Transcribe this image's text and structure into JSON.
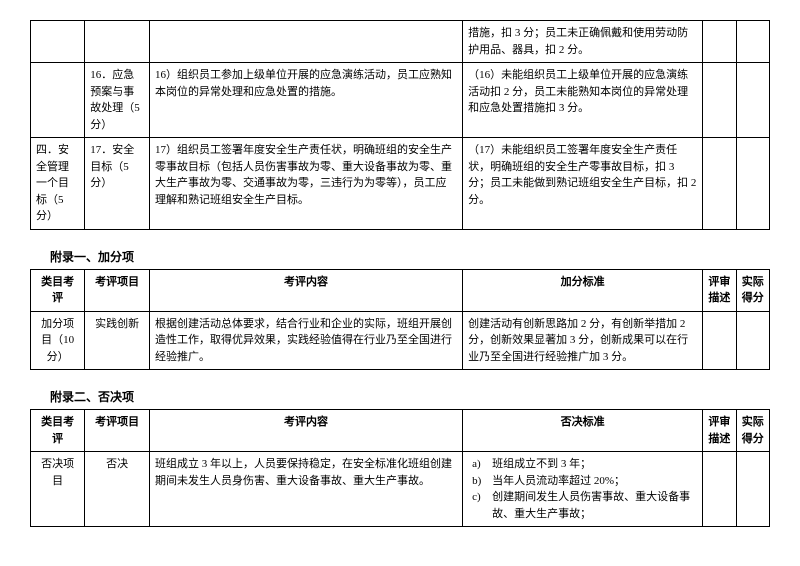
{
  "table1": {
    "rows": [
      {
        "cat": "",
        "item": "",
        "content": "",
        "standard": "措施，扣 3 分；员工未正确佩戴和使用劳动防护用品、器具，扣 2 分。"
      },
      {
        "cat": "",
        "item": "16．应急预案与事故处理（5 分）",
        "content": "16）组织员工参加上级单位开展的应急演练活动，员工应熟知本岗位的异常处理和应急处置的措施。",
        "standard": "（16）未能组织员工上级单位开展的应急演练活动扣 2 分，员工未能熟知本岗位的异常处理和应急处置措施扣 3 分。"
      },
      {
        "cat": "四．安全管理一个目标（5 分）",
        "item": "17．安全目标（5 分）",
        "content": "17）组织员工签署年度安全生产责任状，明确班组的安全生产零事故目标（包括人员伤害事故为零、重大设备事故为零、重大生产事故为零、交通事故为零，三违行为为零等），员工应理解和熟记班组安全生产目标。",
        "standard": "（17）未能组织员工签署年度安全生产责任状，明确班组的安全生产零事故目标，扣 3 分；员工未能做到熟记班组安全生产目标，扣 2 分。"
      }
    ]
  },
  "appendix1": {
    "title": "附录一、加分项",
    "headers": {
      "a": "类目考评",
      "b": "考评项目",
      "c": "考评内容",
      "d": "加分标准",
      "e": "评审描述",
      "f": "实际得分"
    },
    "row": {
      "cat": "加分项目（10分）",
      "item": "实践创新",
      "content": "根据创建活动总体要求，结合行业和企业的实际，班组开展创造性工作，取得优异效果，实践经验值得在行业乃至全国进行经验推广。",
      "standard": "创建活动有创新思路加 2 分，有创新举措加 2 分，创新效果显著加 3 分，创新成果可以在行业乃至全国进行经验推广加 3 分。"
    }
  },
  "appendix2": {
    "title": "附录二、否决项",
    "headers": {
      "a": "类目考评",
      "b": "考评项目",
      "c": "考评内容",
      "d": "否决标准",
      "e": "评审描述",
      "f": "实际得分"
    },
    "row": {
      "cat": "否决项目",
      "item": "否决",
      "content": "班组成立 3 年以上，人员要保持稳定，在安全标准化班组创建期间未发生人员身伤害、重大设备事故、重大生产事故。",
      "std_a_label": "a)",
      "std_a": "班组成立不到 3 年；",
      "std_b_label": "b)",
      "std_b": "当年人员流动率超过 20%；",
      "std_c_label": "c)",
      "std_c": "创建期间发生人员伤害事故、重大设备事故、重大生产事故；"
    }
  }
}
